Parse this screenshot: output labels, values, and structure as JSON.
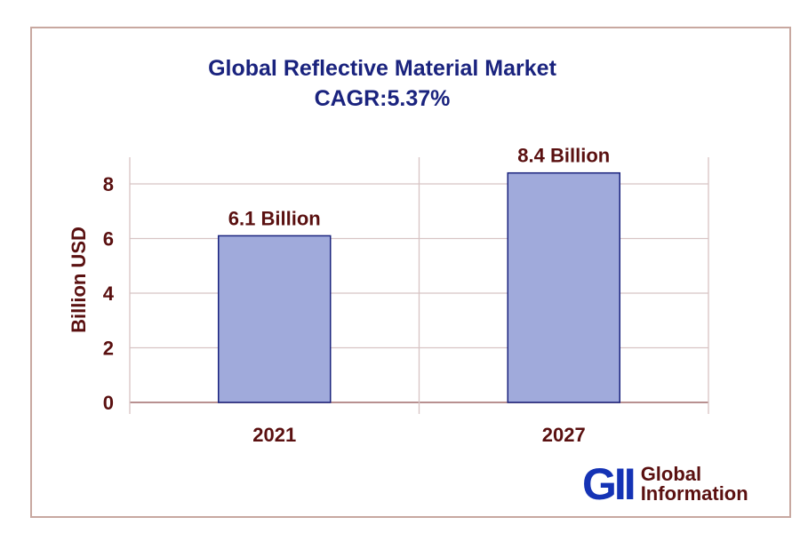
{
  "chart_data": {
    "type": "bar",
    "title": "Global Reflective Material Market",
    "subtitle": "CAGR:5.37%",
    "categories": [
      "2021",
      "2027"
    ],
    "values": [
      6.1,
      8.4
    ],
    "data_labels": [
      "6.1 Billion",
      "8.4 Billion"
    ],
    "xlabel": "",
    "ylabel": "Billion USD",
    "ylim": [
      0,
      9
    ],
    "yticks": [
      0,
      2,
      4,
      6,
      8
    ],
    "grid": true,
    "bar_color": "#a0aadb",
    "bar_edge_color": "#1a237e",
    "text_color": "#5a1010"
  },
  "logo": {
    "mark": "GII",
    "line1": "Global",
    "line2": "Information"
  }
}
